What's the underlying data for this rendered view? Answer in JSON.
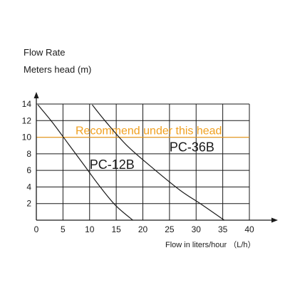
{
  "chart_data": {
    "type": "line",
    "title_lines": [
      "Flow Rate",
      "Meters head (m)"
    ],
    "xlabel": "Flow in liters/hour  （L/h）",
    "ylabel": "Meters head (m)",
    "xlim": [
      0,
      40
    ],
    "ylim": [
      0,
      14
    ],
    "x_ticks": [
      "0",
      "5",
      "10",
      "15",
      "20",
      "25",
      "30",
      "35",
      "40"
    ],
    "y_ticks": [
      "2",
      "4",
      "6",
      "8",
      "10",
      "12",
      "14"
    ],
    "grid": true,
    "series": [
      {
        "name": "PC-12B",
        "color": "#1a1a1a",
        "points": [
          [
            0.3,
            13.9
          ],
          [
            3,
            11.8
          ],
          [
            6,
            9.2
          ],
          [
            9,
            6.6
          ],
          [
            12,
            4.0
          ],
          [
            15,
            1.7
          ],
          [
            18.5,
            -0.2
          ]
        ]
      },
      {
        "name": "PC-36B",
        "color": "#1a1a1a",
        "points": [
          [
            10.5,
            13.9
          ],
          [
            13,
            11.9
          ],
          [
            17,
            9.0
          ],
          [
            22,
            6.2
          ],
          [
            27,
            3.6
          ],
          [
            31,
            1.9
          ],
          [
            35.5,
            -0.1
          ]
        ]
      }
    ],
    "reference_line": {
      "y": 10,
      "color": "#f0a020",
      "label": "Recommend under this head"
    },
    "series_labels": [
      "PC-12B",
      "PC-36B"
    ]
  }
}
